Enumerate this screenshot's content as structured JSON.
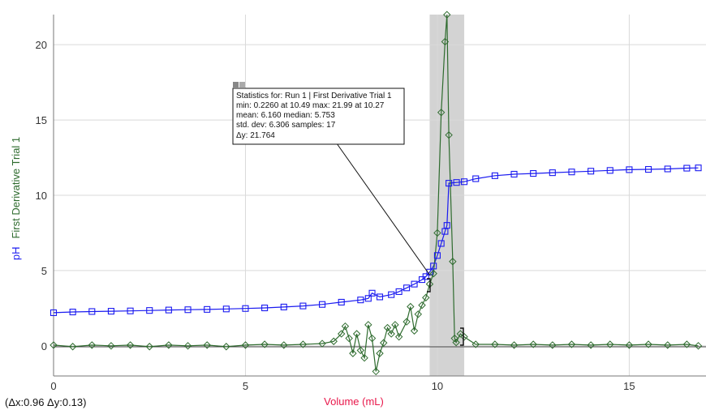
{
  "chart_data": {
    "type": "line",
    "xlabel": "Volume (mL)",
    "ylabel_series": [
      "pH",
      "First Derivative Trial 1"
    ],
    "xlim": [
      0,
      17
    ],
    "ylim": [
      -2,
      22
    ],
    "x_ticks": [
      0,
      5,
      10,
      15
    ],
    "y_ticks": [
      0,
      5,
      10,
      15,
      20
    ],
    "grid": true,
    "selection_range": [
      9.8,
      10.7
    ],
    "series": [
      {
        "name": "pH",
        "color": "#1a1af0",
        "marker": "square",
        "points": [
          [
            0.0,
            2.2
          ],
          [
            0.5,
            2.25
          ],
          [
            1.0,
            2.28
          ],
          [
            1.5,
            2.3
          ],
          [
            2.0,
            2.32
          ],
          [
            2.5,
            2.35
          ],
          [
            3.0,
            2.38
          ],
          [
            3.5,
            2.4
          ],
          [
            4.0,
            2.42
          ],
          [
            4.5,
            2.45
          ],
          [
            5.0,
            2.48
          ],
          [
            5.5,
            2.52
          ],
          [
            6.0,
            2.58
          ],
          [
            6.5,
            2.65
          ],
          [
            7.0,
            2.75
          ],
          [
            7.5,
            2.9
          ],
          [
            8.0,
            3.05
          ],
          [
            8.2,
            3.15
          ],
          [
            8.3,
            3.5
          ],
          [
            8.5,
            3.25
          ],
          [
            8.8,
            3.4
          ],
          [
            9.0,
            3.6
          ],
          [
            9.2,
            3.85
          ],
          [
            9.4,
            4.1
          ],
          [
            9.6,
            4.4
          ],
          [
            9.7,
            4.6
          ],
          [
            9.8,
            4.9
          ],
          [
            9.9,
            5.3
          ],
          [
            10.0,
            6.0
          ],
          [
            10.1,
            6.8
          ],
          [
            10.2,
            7.6
          ],
          [
            10.25,
            8.0
          ],
          [
            10.3,
            10.8
          ],
          [
            10.5,
            10.85
          ],
          [
            10.7,
            10.9
          ],
          [
            11.0,
            11.1
          ],
          [
            11.5,
            11.3
          ],
          [
            12.0,
            11.4
          ],
          [
            12.5,
            11.45
          ],
          [
            13.0,
            11.5
          ],
          [
            13.5,
            11.55
          ],
          [
            14.0,
            11.6
          ],
          [
            14.5,
            11.65
          ],
          [
            15.0,
            11.7
          ],
          [
            15.5,
            11.72
          ],
          [
            16.0,
            11.75
          ],
          [
            16.5,
            11.8
          ],
          [
            16.8,
            11.82
          ]
        ]
      },
      {
        "name": "First Derivative Trial 1",
        "color": "#2e6b2e",
        "marker": "diamond",
        "points": [
          [
            0.0,
            0.05
          ],
          [
            0.5,
            -0.05
          ],
          [
            1.0,
            0.05
          ],
          [
            1.5,
            0.0
          ],
          [
            2.0,
            0.05
          ],
          [
            2.5,
            -0.05
          ],
          [
            3.0,
            0.05
          ],
          [
            3.5,
            0.0
          ],
          [
            4.0,
            0.05
          ],
          [
            4.5,
            -0.05
          ],
          [
            5.0,
            0.05
          ],
          [
            5.5,
            0.1
          ],
          [
            6.0,
            0.05
          ],
          [
            6.5,
            0.1
          ],
          [
            7.0,
            0.15
          ],
          [
            7.3,
            0.3
          ],
          [
            7.5,
            0.8
          ],
          [
            7.6,
            1.3
          ],
          [
            7.7,
            0.5
          ],
          [
            7.8,
            -0.5
          ],
          [
            7.9,
            0.8
          ],
          [
            8.0,
            -0.3
          ],
          [
            8.1,
            -0.8
          ],
          [
            8.2,
            1.4
          ],
          [
            8.3,
            0.5
          ],
          [
            8.4,
            -1.7
          ],
          [
            8.5,
            -0.5
          ],
          [
            8.6,
            0.2
          ],
          [
            8.7,
            1.2
          ],
          [
            8.8,
            0.8
          ],
          [
            8.9,
            1.4
          ],
          [
            9.0,
            0.6
          ],
          [
            9.2,
            1.6
          ],
          [
            9.3,
            2.6
          ],
          [
            9.4,
            1.0
          ],
          [
            9.5,
            2.1
          ],
          [
            9.6,
            2.7
          ],
          [
            9.7,
            3.2
          ],
          [
            9.8,
            4.1
          ],
          [
            9.9,
            4.8
          ],
          [
            10.0,
            7.5
          ],
          [
            10.1,
            15.5
          ],
          [
            10.2,
            20.2
          ],
          [
            10.25,
            21.99
          ],
          [
            10.3,
            14.0
          ],
          [
            10.4,
            5.6
          ],
          [
            10.45,
            0.5
          ],
          [
            10.49,
            0.226
          ],
          [
            10.6,
            0.8
          ],
          [
            10.7,
            0.6
          ],
          [
            11.0,
            0.1
          ],
          [
            11.5,
            0.1
          ],
          [
            12.0,
            0.05
          ],
          [
            12.5,
            0.1
          ],
          [
            13.0,
            0.05
          ],
          [
            13.5,
            0.1
          ],
          [
            14.0,
            0.05
          ],
          [
            14.5,
            0.1
          ],
          [
            15.0,
            0.05
          ],
          [
            15.5,
            0.1
          ],
          [
            16.0,
            0.05
          ],
          [
            16.5,
            0.1
          ],
          [
            16.8,
            0.0
          ]
        ]
      }
    ],
    "delta_readout": "(Δx:0.96 Δy:0.13)"
  },
  "stats_box": {
    "line1": "Statistics for: Run 1 | First Derivative Trial 1",
    "line2": "min: 0.2260 at 10.49 max: 21.99 at 10.27",
    "line3": "mean: 6.160 median: 5.753",
    "line4": "std. dev: 6.306 samples: 17",
    "line5": "Δy: 21.764"
  },
  "icons": [
    "close-icon",
    "options-icon"
  ]
}
